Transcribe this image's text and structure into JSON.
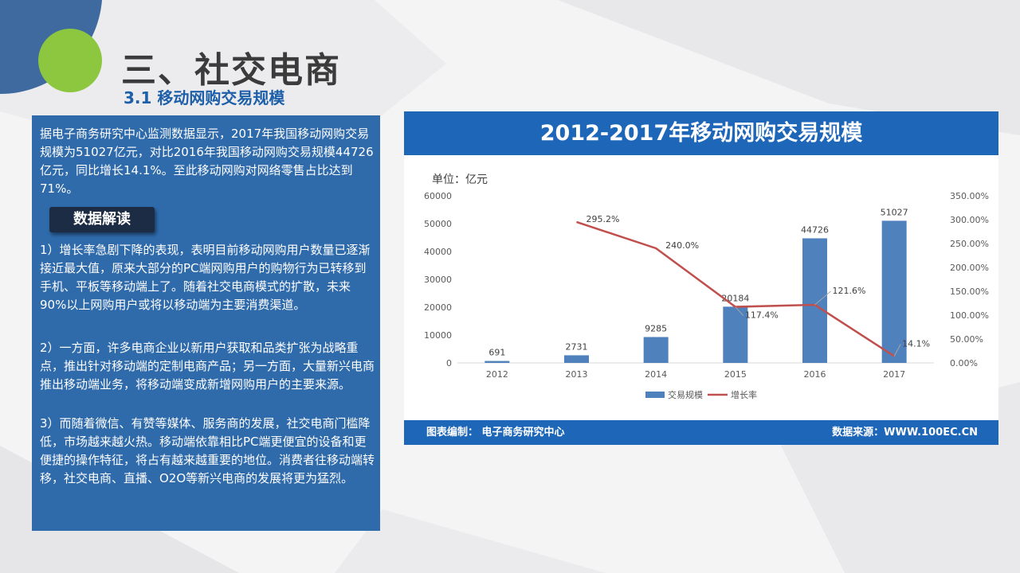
{
  "header": {
    "title": "三、社交电商",
    "subtitle": "3.1 移动网购交易规模"
  },
  "panel": {
    "intro": "据电子商务研究中心监测数据显示，2017年我国移动网购交易规模为51027亿元，对比2016年我国移动网购交易规模44726亿元，同比增长14.1%。至此移动网购对网络零售占比达到71%。",
    "badge": "数据解读",
    "p1": "1）增长率急剧下降的表现，表明目前移动网购用户数量已逐渐接近最大值，原来大部分的PC端网购用户的购物行为已转移到手机、平板等移动端上了。随着社交电商模式的扩散，未来90%以上网购用户或将以移动端为主要消费渠道。",
    "p2": "2）一方面，许多电商企业以新用户获取和品类扩张为战略重点，推出针对移动端的定制电商产品；另一方面，大量新兴电商推出移动端业务，将移动端变成新增网购用户的主要来源。",
    "p3": "3）而随着微信、有赞等媒体、服务商的发展，社交电商门槛降低，市场越来越火热。移动端依靠相比PC端更便宜的设备和更便捷的操作特征，将占有越来越重要的地位。消费者往移动端转移，社交电商、直播、O2O等新兴电商的发展将更为猛烈。"
  },
  "chart_footer": {
    "left": "图表编制： 电子商务研究中心",
    "right": "数据来源：WWW.100EC.CN"
  },
  "colors": {
    "bar": "#4f81bd",
    "line": "#c0504d",
    "header_blue": "#1d66b8",
    "panel_blue": "#2f6aab"
  },
  "chart_data": {
    "type": "bar",
    "title": "2012-2017年移动网购交易规模",
    "unit_label": "单位：亿元",
    "categories": [
      "2012",
      "2013",
      "2014",
      "2015",
      "2016",
      "2017"
    ],
    "series": [
      {
        "name": "交易规模",
        "type": "bar",
        "axis": "left",
        "values": [
          691,
          2731,
          9285,
          20184,
          44726,
          51027
        ]
      },
      {
        "name": "增长率",
        "type": "line",
        "axis": "right",
        "values": [
          null,
          295.2,
          240.0,
          117.4,
          121.6,
          14.1
        ]
      }
    ],
    "bar_labels": [
      "691",
      "2731",
      "9285",
      "20184",
      "44726",
      "51027"
    ],
    "line_labels": [
      "",
      "295.2%",
      "240.0%",
      "117.4%",
      "121.6%",
      "14.1%"
    ],
    "y_left": {
      "min": 0,
      "max": 60000,
      "ticks": [
        "0",
        "10000",
        "20000",
        "30000",
        "40000",
        "50000",
        "60000"
      ]
    },
    "y_right": {
      "min": 0,
      "max": 350,
      "ticks": [
        "0.00%",
        "50.00%",
        "100.00%",
        "150.00%",
        "200.00%",
        "250.00%",
        "300.00%",
        "350.00%"
      ]
    },
    "legend": {
      "position": "bottom",
      "items": [
        "交易规模",
        "增长率"
      ]
    },
    "grid": false
  }
}
